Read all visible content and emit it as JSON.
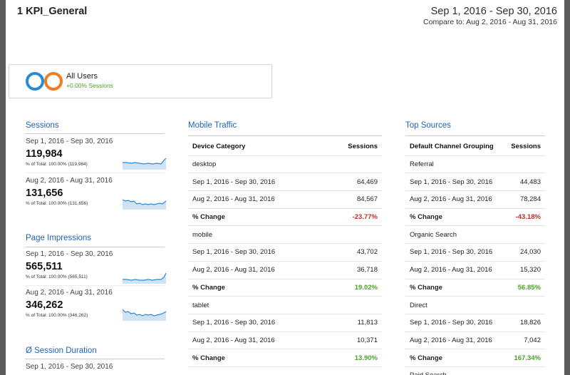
{
  "report": {
    "title": "1 KPI_General",
    "date_range": "Sep 1, 2016 - Sep 30, 2016",
    "compare_to": "Compare to: Aug 2, 2016 - Aug 31, 2016"
  },
  "segment": {
    "name": "All Users",
    "change": "+0.00% Sessions"
  },
  "metrics": {
    "sessions": {
      "title": "Sessions",
      "current": {
        "date": "Sep 1, 2016 - Sep 30, 2016",
        "value": "119,984",
        "total": "% of Total: 100.00% (119,984)"
      },
      "previous": {
        "date": "Aug 2, 2016 - Aug 31, 2016",
        "value": "131,656",
        "total": "% of Total: 100.00% (131,656)"
      }
    },
    "page_impressions": {
      "title": "Page Impressions",
      "current": {
        "date": "Sep 1, 2016 - Sep 30, 2016",
        "value": "565,511",
        "total": "% of Total: 100.00% (565,511)"
      },
      "previous": {
        "date": "Aug 2, 2016 - Aug 31, 2016",
        "value": "346,262",
        "total": "% of Total: 100.00% (346,262)"
      }
    },
    "session_duration": {
      "title": "Ø Session Duration",
      "current": {
        "date": "Sep 1, 2016 - Sep 30, 2016"
      }
    }
  },
  "mobile_traffic": {
    "title": "Mobile Traffic",
    "col1": "Device Category",
    "col2": "Sessions",
    "groups": [
      {
        "name": "desktop",
        "current_label": "Sep 1, 2016 - Sep 30, 2016",
        "current": "64,469",
        "previous_label": "Aug 2, 2016 - Aug 31, 2016",
        "previous": "84,567",
        "change_label": "% Change",
        "change": "-23.77%"
      },
      {
        "name": "mobile",
        "current_label": "Sep 1, 2016 - Sep 30, 2016",
        "current": "43,702",
        "previous_label": "Aug 2, 2016 - Aug 31, 2016",
        "previous": "36,718",
        "change_label": "% Change",
        "change": "19.02%"
      },
      {
        "name": "tablet",
        "current_label": "Sep 1, 2016 - Sep 30, 2016",
        "current": "11,813",
        "previous_label": "Aug 2, 2016 - Aug 31, 2016",
        "previous": "10,371",
        "change_label": "% Change",
        "change": "13.90%"
      }
    ]
  },
  "top_sources": {
    "title": "Top Sources",
    "col1": "Default Channel Grouping",
    "col2": "Sessions",
    "groups": [
      {
        "name": "Referral",
        "current_label": "Sep 1, 2016 - Sep 30, 2016",
        "current": "44,483",
        "previous_label": "Aug 2, 2016 - Aug 31, 2016",
        "previous": "78,284",
        "change_label": "% Change",
        "change": "-43.18%"
      },
      {
        "name": "Organic Search",
        "current_label": "Sep 1, 2016 - Sep 30, 2016",
        "current": "24,030",
        "previous_label": "Aug 2, 2016 - Aug 31, 2016",
        "previous": "15,320",
        "change_label": "% Change",
        "change": "56.85%"
      },
      {
        "name": "Direct",
        "current_label": "Sep 1, 2016 - Sep 30, 2016",
        "current": "18,826",
        "previous_label": "Aug 2, 2016 - Aug 31, 2016",
        "previous": "7,042",
        "change_label": "% Change",
        "change": "167.34%"
      },
      {
        "name": "Paid Search"
      }
    ]
  },
  "colors": {
    "link_blue": "#1f62b5",
    "segment_blue": "#2b8ad1",
    "segment_orange": "#ee7d24",
    "positive": "#4aa12a",
    "negative": "#b5322e",
    "sparkline": "#2b8ad1"
  }
}
